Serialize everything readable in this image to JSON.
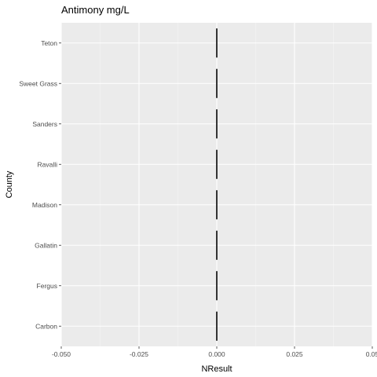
{
  "chart_data": {
    "type": "boxplot",
    "title": "Antimony mg/L",
    "xlabel": "NResult",
    "ylabel": "County",
    "xlim": [
      -0.05,
      0.05
    ],
    "x_ticks": [
      -0.05,
      -0.025,
      0.0,
      0.025,
      0.05
    ],
    "x_tick_labels": [
      "-0.050",
      "-0.025",
      "0.000",
      "0.025",
      "0.05"
    ],
    "categories": [
      "Teton",
      "Sweet Grass",
      "Sanders",
      "Ravalli",
      "Madison",
      "Gallatin",
      "Fergus",
      "Carbon"
    ],
    "values": [
      0,
      0,
      0,
      0,
      0,
      0,
      0,
      0
    ],
    "grid": true,
    "colors": {
      "panel_background": "#ebebeb",
      "grid_major": "#ffffff",
      "grid_minor": "#f5f5f5",
      "box_line": "#333333",
      "tick_text": "#4d4d4d",
      "tick_mark": "#333333"
    }
  }
}
